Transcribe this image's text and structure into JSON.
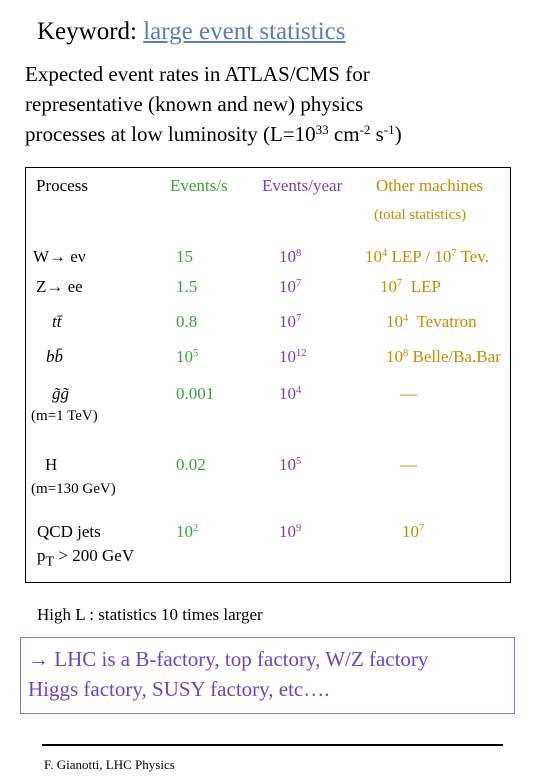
{
  "header": {
    "label": "Keyword: ",
    "keyword": "large event statistics"
  },
  "intro": [
    [
      {
        "text": "Expected event rates in ATLAS/CMS for"
      }
    ],
    [
      {
        "text": "representative (known and new) physics"
      }
    ],
    [
      {
        "text": "processes at low luminosity (L=10"
      },
      {
        "sup": "33"
      },
      {
        "text": " cm"
      },
      {
        "sup": "-2"
      },
      {
        "text": " s"
      },
      {
        "sup": "-1"
      },
      {
        "text": ")"
      }
    ]
  ],
  "table": {
    "headers": [
      "Process",
      "Events/s",
      "Events/year",
      "Other machines"
    ],
    "subheader": "(total statistics)",
    "rows": [
      {
        "process": [
          {
            "text": "W→ eν"
          }
        ],
        "events_s": [
          {
            "text": "15"
          }
        ],
        "events_year": [
          {
            "text": "10"
          },
          {
            "sup": "8"
          }
        ],
        "other": [
          {
            "text": "10"
          },
          {
            "sup": "4"
          },
          {
            "text": " LEP / 10"
          },
          {
            "sup": "7"
          },
          {
            "text": " Tev."
          }
        ]
      },
      {
        "process": [
          {
            "text": "Z→ ee"
          }
        ],
        "events_s": [
          {
            "text": "1.5"
          }
        ],
        "events_year": [
          {
            "text": "10"
          },
          {
            "sup": "7"
          }
        ],
        "other": [
          {
            "text": "10"
          },
          {
            "sup": "7"
          },
          {
            "text": "  LEP"
          }
        ]
      },
      {
        "process": [
          {
            "text": "tt̄"
          }
        ],
        "events_s": [
          {
            "text": "0.8"
          }
        ],
        "events_year": [
          {
            "text": "10"
          },
          {
            "sup": "7"
          }
        ],
        "other": [
          {
            "text": "10"
          },
          {
            "sup": "4"
          },
          {
            "text": "  Tevatron"
          }
        ]
      },
      {
        "process": [
          {
            "text": "bb̄"
          }
        ],
        "events_s": [
          {
            "text": "10"
          },
          {
            "sup": "5"
          }
        ],
        "events_year": [
          {
            "text": "10"
          },
          {
            "sup": "12"
          }
        ],
        "other": [
          {
            "text": "10"
          },
          {
            "sup": "8"
          },
          {
            "text": " Belle/Ba.Bar"
          }
        ]
      },
      {
        "process": [
          {
            "text": "g̃g̃"
          }
        ],
        "note": "(m=1 TeV)",
        "events_s": [
          {
            "text": "0.001"
          }
        ],
        "events_year": [
          {
            "text": "10"
          },
          {
            "sup": "4"
          }
        ],
        "other": [
          {
            "text": "—"
          }
        ]
      },
      {
        "process": [
          {
            "text": "H"
          }
        ],
        "note": "(m=130 GeV)",
        "events_s": [
          {
            "text": "0.02"
          }
        ],
        "events_year": [
          {
            "text": "10"
          },
          {
            "sup": "5"
          }
        ],
        "other": [
          {
            "text": "—"
          }
        ]
      },
      {
        "process": [
          {
            "text": "QCD jets"
          }
        ],
        "process2": [
          {
            "text": "p"
          },
          {
            "sub": "T"
          },
          {
            "text": " > 200 GeV"
          }
        ],
        "events_s": [
          {
            "text": "10"
          },
          {
            "sup": "2"
          }
        ],
        "events_year": [
          {
            "text": "10"
          },
          {
            "sup": "9"
          }
        ],
        "other": [
          {
            "text": "10"
          },
          {
            "sup": "7"
          }
        ]
      }
    ]
  },
  "highlight": "High L : statistics 10 times larger",
  "callout": [
    "→ LHC is  a B-factory, top factory, W/Z factory",
    "Higgs factory, SUSY factory, etc…."
  ],
  "footer": "F. Gianotti,  LHC Physics"
}
